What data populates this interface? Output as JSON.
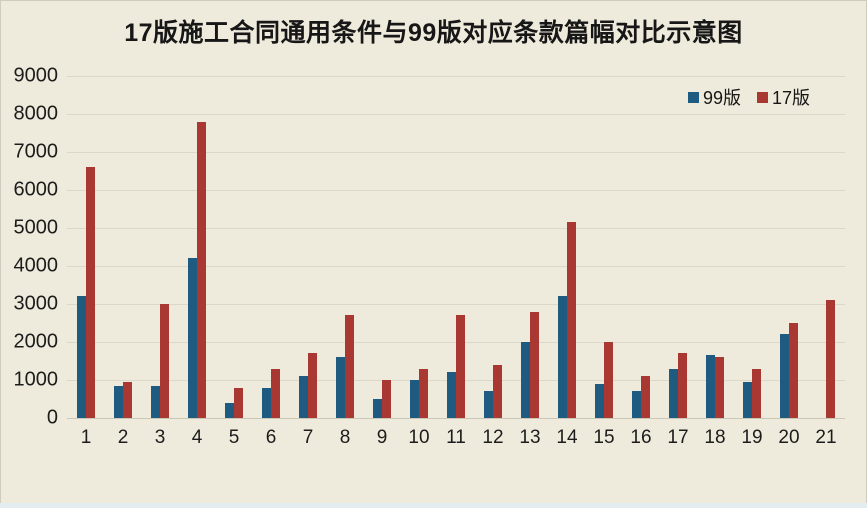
{
  "chart_data": {
    "type": "bar",
    "title": "17版施工合同通用条件与99版对应条款篇幅对比示意图",
    "categories": [
      "1",
      "2",
      "3",
      "4",
      "5",
      "6",
      "7",
      "8",
      "9",
      "10",
      "11",
      "12",
      "13",
      "14",
      "15",
      "16",
      "17",
      "18",
      "19",
      "20",
      "21"
    ],
    "series": [
      {
        "name": "99版",
        "color": "#1F5B80",
        "values": [
          3200,
          850,
          850,
          4200,
          400,
          800,
          1100,
          1600,
          500,
          1000,
          1200,
          700,
          2000,
          3200,
          900,
          700,
          1300,
          1650,
          950,
          2200,
          0
        ]
      },
      {
        "name": "17版",
        "color": "#A93832",
        "values": [
          6600,
          950,
          3000,
          7800,
          800,
          1300,
          1700,
          2700,
          1000,
          1300,
          2700,
          1400,
          2800,
          5150,
          2000,
          1100,
          1700,
          1600,
          1300,
          2500,
          3100
        ]
      }
    ],
    "ylim": [
      0,
      9000
    ],
    "ytick_interval": 1000,
    "yticks": [
      "0",
      "1000",
      "2000",
      "3000",
      "4000",
      "5000",
      "6000",
      "7000",
      "8000",
      "9000"
    ],
    "grid": true,
    "legend_position": "top-right",
    "colors": {
      "background": "#EFEBDC",
      "gridline": "#DCD8C9",
      "text": "#1c1c1c"
    }
  }
}
